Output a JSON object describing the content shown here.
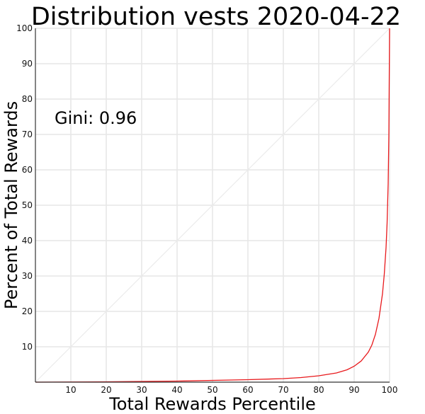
{
  "chart_data": {
    "type": "line",
    "title": "Distribution vests 2020-04-22",
    "xlabel": "Total Rewards Percentile",
    "ylabel": "Percent of Total Rewards",
    "xlim": [
      0,
      100
    ],
    "ylim": [
      0,
      100
    ],
    "x_ticks": [
      10,
      20,
      30,
      40,
      50,
      60,
      70,
      80,
      90,
      100
    ],
    "y_ticks": [
      10,
      20,
      30,
      40,
      50,
      60,
      70,
      80,
      90,
      100
    ],
    "grid": true,
    "annotation": "Gini: 0.96",
    "series": [
      {
        "color": "#e8191c",
        "x": [
          0,
          10,
          20,
          30,
          40,
          50,
          60,
          70,
          75,
          80,
          85,
          88,
          90,
          92,
          94,
          95,
          96,
          97,
          98,
          98.5,
          99,
          99.3,
          99.6,
          99.8,
          100
        ],
        "y": [
          0,
          0.05,
          0.1,
          0.2,
          0.3,
          0.5,
          0.7,
          1.0,
          1.3,
          1.8,
          2.6,
          3.5,
          4.5,
          6.0,
          8.5,
          10.5,
          13.5,
          18.0,
          25.0,
          30.5,
          38.0,
          45.0,
          56.0,
          70.0,
          100
        ]
      },
      {
        "color": "#ebebeb",
        "x": [
          0,
          100
        ],
        "y": [
          0,
          100
        ]
      }
    ]
  }
}
